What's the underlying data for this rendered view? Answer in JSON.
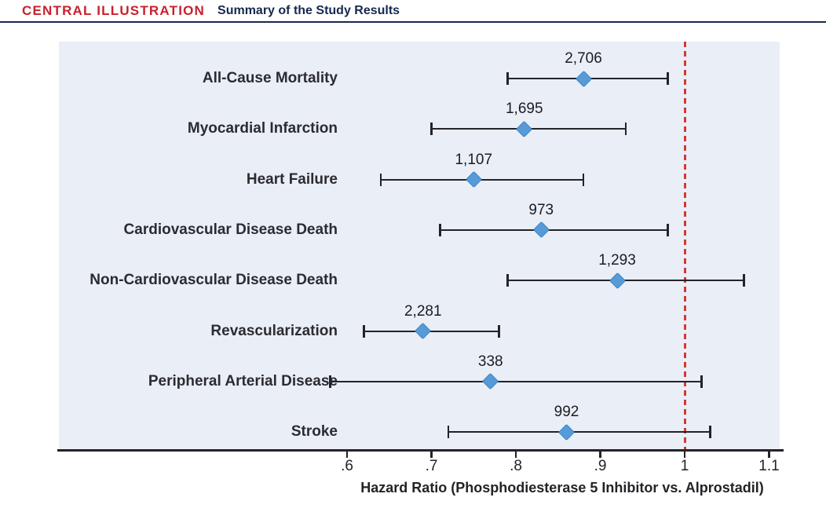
{
  "header": {
    "kicker": "CENTRAL ILLUSTRATION",
    "title": "Summary of the Study Results"
  },
  "colors": {
    "kicker_red": "#c8202e",
    "header_navy": "#16294e",
    "panel_background": "#e9eef7",
    "marker_blue": "#569bd8",
    "reference_line_red": "#d13a35",
    "line_black": "#232328"
  },
  "chart_data": {
    "type": "scatter",
    "variant": "forest-plot",
    "title": "Summary of the Study Results",
    "xlabel": "Hazard Ratio (Phosphodiesterase 5 Inhibitor vs. Alprostadil)",
    "ylabel": "",
    "xlim": [
      0.26,
      1.11
    ],
    "x_axis_range_shown": [
      0.6,
      1.1
    ],
    "x_ticks": [
      {
        "value": 0.6,
        "label": ".6"
      },
      {
        "value": 0.7,
        "label": ".7"
      },
      {
        "value": 0.8,
        "label": ".8"
      },
      {
        "value": 0.9,
        "label": ".9"
      },
      {
        "value": 1.0,
        "label": "1"
      },
      {
        "value": 1.1,
        "label": "1.1"
      }
    ],
    "reference_line_x": 1.0,
    "grid": false,
    "legend": "none",
    "rows": [
      {
        "label": "All-Cause Mortality",
        "n": "2,706",
        "hr": 0.88,
        "ci_low": 0.79,
        "ci_high": 0.98
      },
      {
        "label": "Myocardial Infarction",
        "n": "1,695",
        "hr": 0.81,
        "ci_low": 0.7,
        "ci_high": 0.93
      },
      {
        "label": "Heart Failure",
        "n": "1,107",
        "hr": 0.75,
        "ci_low": 0.64,
        "ci_high": 0.88
      },
      {
        "label": "Cardiovascular Disease Death",
        "n": "973",
        "hr": 0.83,
        "ci_low": 0.71,
        "ci_high": 0.98
      },
      {
        "label": "Non-Cardiovascular Disease Death",
        "n": "1,293",
        "hr": 0.92,
        "ci_low": 0.79,
        "ci_high": 1.07
      },
      {
        "label": "Revascularization",
        "n": "2,281",
        "hr": 0.69,
        "ci_low": 0.62,
        "ci_high": 0.78
      },
      {
        "label": "Peripheral Arterial Disease",
        "n": "338",
        "hr": 0.77,
        "ci_low": 0.58,
        "ci_high": 1.02
      },
      {
        "label": "Stroke",
        "n": "992",
        "hr": 0.86,
        "ci_low": 0.72,
        "ci_high": 1.03
      }
    ]
  }
}
